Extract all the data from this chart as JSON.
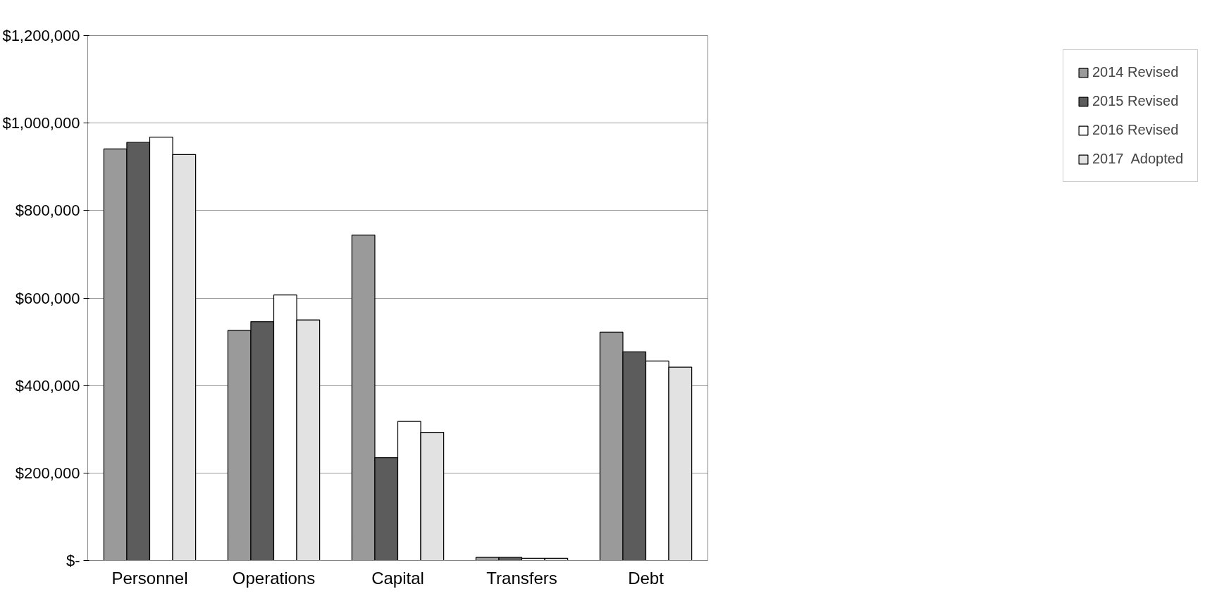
{
  "chart_data": {
    "type": "bar",
    "categories": [
      "Personnel",
      "Operations",
      "Capital",
      "Transfers",
      "Debt"
    ],
    "series": [
      {
        "name": "2014 Revised",
        "color": "#9a9a9a",
        "values": [
          941000,
          526000,
          744000,
          7000,
          522000
        ]
      },
      {
        "name": "2015 Revised",
        "color": "#5c5c5c",
        "values": [
          956000,
          546000,
          235000,
          7000,
          477000
        ]
      },
      {
        "name": "2016 Revised",
        "color": "#ffffff",
        "values": [
          968000,
          607000,
          318000,
          5000,
          456000
        ]
      },
      {
        "name": "2017  Adopted",
        "color": "#e2e2e2",
        "values": [
          928000,
          550000,
          293000,
          5000,
          442000
        ]
      }
    ],
    "ylim": [
      0,
      1200000
    ],
    "yticks": [
      {
        "value": 0,
        "label": "$-"
      },
      {
        "value": 200000,
        "label": "$200,000"
      },
      {
        "value": 400000,
        "label": "$400,000"
      },
      {
        "value": 600000,
        "label": "$600,000"
      },
      {
        "value": 800000,
        "label": "$800,000"
      },
      {
        "value": 1000000,
        "label": "$1,000,000"
      },
      {
        "value": 1200000,
        "label": "$1,200,000"
      }
    ],
    "grid": "y",
    "legend": "right"
  }
}
